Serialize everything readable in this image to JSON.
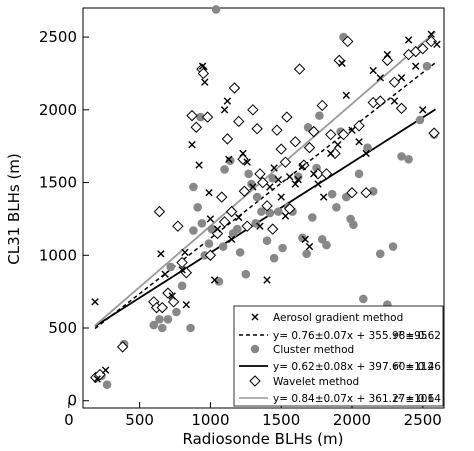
{
  "chart_data": {
    "type": "scatter",
    "xlabel": "Radiosonde BLHs (m)",
    "ylabel": "CL31 BLHs (m)",
    "xlim": [
      100,
      2650
    ],
    "ylim": [
      -50,
      2700
    ],
    "xticks": [
      0,
      500,
      1000,
      1500,
      2000,
      2500
    ],
    "yticks": [
      0,
      500,
      1000,
      1500,
      2000,
      2500
    ],
    "xtick_labels": [
      "0",
      "500",
      "1000",
      "1500",
      "2000",
      "2500"
    ],
    "ytick_labels": [
      "0",
      "500",
      "1000",
      "1500",
      "2000",
      "2500"
    ],
    "grid": false,
    "legend_position": "bottom-right",
    "series": [
      {
        "name": "Aerosol gradient method",
        "marker": "x",
        "color": "#000000",
        "points": [
          [
            185,
            680
          ],
          [
            260,
            210
          ],
          [
            200,
            150
          ],
          [
            650,
            1010
          ],
          [
            680,
            870
          ],
          [
            730,
            720
          ],
          [
            800,
            900
          ],
          [
            820,
            1020
          ],
          [
            830,
            660
          ],
          [
            870,
            1760
          ],
          [
            920,
            1620
          ],
          [
            945,
            2300
          ],
          [
            960,
            2190
          ],
          [
            990,
            1430
          ],
          [
            1000,
            1250
          ],
          [
            1030,
            830
          ],
          [
            1050,
            1180
          ],
          [
            1100,
            2000
          ],
          [
            1120,
            2060
          ],
          [
            1130,
            1660
          ],
          [
            1150,
            1110
          ],
          [
            1200,
            1260
          ],
          [
            1230,
            1700
          ],
          [
            1260,
            1640
          ],
          [
            1300,
            1470
          ],
          [
            1350,
            1200
          ],
          [
            1400,
            830
          ],
          [
            1420,
            1470
          ],
          [
            1450,
            1600
          ],
          [
            1480,
            1520
          ],
          [
            1500,
            1400
          ],
          [
            1530,
            1270
          ],
          [
            1560,
            1540
          ],
          [
            1600,
            1490
          ],
          [
            1620,
            1520
          ],
          [
            1650,
            1610
          ],
          [
            1670,
            1110
          ],
          [
            1700,
            1060
          ],
          [
            1730,
            1560
          ],
          [
            1760,
            1490
          ],
          [
            1800,
            1400
          ],
          [
            1850,
            1700
          ],
          [
            1900,
            1760
          ],
          [
            1930,
            2320
          ],
          [
            1960,
            2100
          ],
          [
            2000,
            1860
          ],
          [
            2050,
            1780
          ],
          [
            2100,
            1700
          ],
          [
            2150,
            2270
          ],
          [
            2200,
            2220
          ],
          [
            2250,
            2380
          ],
          [
            2300,
            2060
          ],
          [
            2350,
            2220
          ],
          [
            2400,
            2480
          ],
          [
            2450,
            2300
          ],
          [
            2500,
            2000
          ],
          [
            2560,
            2520
          ],
          [
            2600,
            2450
          ]
        ]
      },
      {
        "name": "Cluster method",
        "marker": "circle",
        "color": "#888888",
        "points": [
          [
            210,
            170
          ],
          [
            230,
            170
          ],
          [
            270,
            110
          ],
          [
            390,
            390
          ],
          [
            600,
            520
          ],
          [
            640,
            560
          ],
          [
            660,
            500
          ],
          [
            700,
            560
          ],
          [
            720,
            920
          ],
          [
            760,
            610
          ],
          [
            800,
            790
          ],
          [
            860,
            500
          ],
          [
            880,
            1470
          ],
          [
            910,
            1330
          ],
          [
            940,
            1220
          ],
          [
            960,
            1000
          ],
          [
            990,
            1080
          ],
          [
            1010,
            1180
          ],
          [
            1040,
            2690
          ],
          [
            1060,
            820
          ],
          [
            1090,
            1060
          ],
          [
            1100,
            1590
          ],
          [
            1140,
            1650
          ],
          [
            1160,
            1150
          ],
          [
            1190,
            1180
          ],
          [
            1210,
            1020
          ],
          [
            1250,
            870
          ],
          [
            1270,
            1560
          ],
          [
            1290,
            1490
          ],
          [
            1330,
            1400
          ],
          [
            1360,
            1300
          ],
          [
            1400,
            1100
          ],
          [
            1420,
            1290
          ],
          [
            1450,
            980
          ],
          [
            1480,
            1300
          ],
          [
            1510,
            1050
          ],
          [
            1550,
            1330
          ],
          [
            1580,
            1300
          ],
          [
            1620,
            1540
          ],
          [
            1650,
            1120
          ],
          [
            1680,
            1010
          ],
          [
            1720,
            1260
          ],
          [
            1750,
            1600
          ],
          [
            1790,
            1110
          ],
          [
            1820,
            1070
          ],
          [
            1860,
            1420
          ],
          [
            1890,
            1330
          ],
          [
            1920,
            1850
          ],
          [
            1940,
            2500
          ],
          [
            1960,
            1400
          ],
          [
            1990,
            1250
          ],
          [
            2010,
            1210
          ],
          [
            2050,
            1560
          ],
          [
            2080,
            700
          ],
          [
            2110,
            1740
          ],
          [
            2150,
            1440
          ],
          [
            2200,
            1010
          ],
          [
            2250,
            660
          ],
          [
            2290,
            1060
          ],
          [
            2350,
            1680
          ],
          [
            2400,
            1660
          ],
          [
            2480,
            1930
          ],
          [
            2530,
            2300
          ],
          [
            2580,
            1830
          ],
          [
            880,
            1170
          ],
          [
            1320,
            1220
          ],
          [
            1690,
            1880
          ],
          [
            1770,
            1960
          ],
          [
            930,
            1950
          ],
          [
            1440,
            1530
          ]
        ]
      },
      {
        "name": "Wavelet method",
        "marker": "diamond",
        "color": "#000000",
        "points": [
          [
            190,
            160
          ],
          [
            220,
            180
          ],
          [
            380,
            370
          ],
          [
            600,
            680
          ],
          [
            620,
            640
          ],
          [
            640,
            1300
          ],
          [
            660,
            640
          ],
          [
            700,
            740
          ],
          [
            740,
            680
          ],
          [
            770,
            1200
          ],
          [
            800,
            950
          ],
          [
            830,
            880
          ],
          [
            870,
            1960
          ],
          [
            900,
            1880
          ],
          [
            940,
            2280
          ],
          [
            950,
            2250
          ],
          [
            980,
            1950
          ],
          [
            1000,
            1000
          ],
          [
            1050,
            1150
          ],
          [
            1080,
            1400
          ],
          [
            1100,
            1230
          ],
          [
            1120,
            1800
          ],
          [
            1150,
            1300
          ],
          [
            1170,
            2150
          ],
          [
            1200,
            1920
          ],
          [
            1230,
            1660
          ],
          [
            1260,
            1200
          ],
          [
            1300,
            2000
          ],
          [
            1330,
            1870
          ],
          [
            1370,
            1500
          ],
          [
            1400,
            1340
          ],
          [
            1440,
            1180
          ],
          [
            1470,
            1860
          ],
          [
            1500,
            1730
          ],
          [
            1530,
            1640
          ],
          [
            1560,
            1320
          ],
          [
            1600,
            1780
          ],
          [
            1630,
            2280
          ],
          [
            1660,
            1620
          ],
          [
            1700,
            1740
          ],
          [
            1730,
            1850
          ],
          [
            1760,
            1560
          ],
          [
            1790,
            2030
          ],
          [
            1820,
            1560
          ],
          [
            1850,
            1830
          ],
          [
            1880,
            1700
          ],
          [
            1910,
            2340
          ],
          [
            1940,
            1830
          ],
          [
            1970,
            2470
          ],
          [
            2000,
            1430
          ],
          [
            2050,
            1890
          ],
          [
            2100,
            1430
          ],
          [
            2150,
            2050
          ],
          [
            2200,
            2060
          ],
          [
            2250,
            2340
          ],
          [
            2300,
            2190
          ],
          [
            2350,
            2010
          ],
          [
            2400,
            2380
          ],
          [
            2450,
            2400
          ],
          [
            2500,
            2420
          ],
          [
            2560,
            2470
          ],
          [
            2580,
            1840
          ],
          [
            1240,
            1440
          ],
          [
            1540,
            1950
          ],
          [
            1350,
            1560
          ]
        ]
      }
    ],
    "fits": [
      {
        "series": "Aerosol gradient method",
        "equation": "y= 0.76±0.07x + 355.98±95",
        "r2_label": "r² = 0.62",
        "slope": 0.76,
        "intercept": 355.98,
        "x_range": [
          185,
          2590
        ],
        "line_style": "dashed",
        "color": "#000000"
      },
      {
        "series": "Cluster method",
        "equation": "y= 0.62±0.08x + 397.60±112",
        "r2_label": "r² = 0.46",
        "slope": 0.62,
        "intercept": 397.6,
        "x_range": [
          185,
          2590
        ],
        "line_style": "solid",
        "color": "#000000"
      },
      {
        "series": "Wavelet method",
        "equation": "y= 0.84±0.07x + 361.27±101",
        "r2_label": "r² = 0.64",
        "slope": 0.84,
        "intercept": 361.27,
        "x_range": [
          185,
          2590
        ],
        "line_style": "solid",
        "color": "#999999"
      }
    ]
  }
}
